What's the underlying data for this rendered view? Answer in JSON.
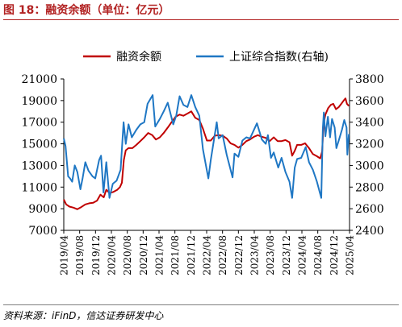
{
  "figure": {
    "title": "图 18：融资余额（单位：亿元）",
    "source": "资料来源：iFinD，信达证券研发中心"
  },
  "chart_data": {
    "type": "line",
    "x_tick_labels": [
      "2019/04",
      "2019/08",
      "2019/12",
      "2020/04",
      "2020/08",
      "2020/12",
      "2021/04",
      "2021/08",
      "2021/12",
      "2022/04",
      "2022/08",
      "2022/12",
      "2023/04",
      "2023/08",
      "2023/12",
      "2024/04",
      "2024/08",
      "2024/12",
      "2025/04"
    ],
    "y_left": {
      "ylim": [
        7000,
        21000
      ],
      "ticks": [
        7000,
        9000,
        11000,
        13000,
        15000,
        17000,
        19000,
        21000
      ]
    },
    "y_right": {
      "ylim": [
        2400,
        3800
      ],
      "ticks": [
        2400,
        2600,
        2800,
        3000,
        3200,
        3400,
        3600,
        3800
      ]
    },
    "legend_position": "top",
    "series": [
      {
        "name": "融资余额",
        "axis": "left",
        "color": "#c00000",
        "points": [
          [
            "2019-04-01",
            9850
          ],
          [
            "2019-04-20",
            9400
          ],
          [
            "2019-05-15",
            9200
          ],
          [
            "2019-06-15",
            9100
          ],
          [
            "2019-07-15",
            8950
          ],
          [
            "2019-08-15",
            9150
          ],
          [
            "2019-09-15",
            9400
          ],
          [
            "2019-10-15",
            9500
          ],
          [
            "2019-11-15",
            9550
          ],
          [
            "2019-12-15",
            9750
          ],
          [
            "2020-01-10",
            10300
          ],
          [
            "2020-02-05",
            10050
          ],
          [
            "2020-02-25",
            10750
          ],
          [
            "2020-03-20",
            10450
          ],
          [
            "2020-04-20",
            10550
          ],
          [
            "2020-05-20",
            10750
          ],
          [
            "2020-06-10",
            11000
          ],
          [
            "2020-06-25",
            11400
          ],
          [
            "2020-07-10",
            13500
          ],
          [
            "2020-07-25",
            14400
          ],
          [
            "2020-08-15",
            14600
          ],
          [
            "2020-09-15",
            14600
          ],
          [
            "2020-10-15",
            14900
          ],
          [
            "2020-11-15",
            15250
          ],
          [
            "2020-12-15",
            15600
          ],
          [
            "2021-01-15",
            16000
          ],
          [
            "2021-02-15",
            15800
          ],
          [
            "2021-03-15",
            15400
          ],
          [
            "2021-04-15",
            15600
          ],
          [
            "2021-05-15",
            16000
          ],
          [
            "2021-06-15",
            16500
          ],
          [
            "2021-07-15",
            17000
          ],
          [
            "2021-08-15",
            17500
          ],
          [
            "2021-09-15",
            17700
          ],
          [
            "2021-10-15",
            17600
          ],
          [
            "2021-11-15",
            17800
          ],
          [
            "2021-12-15",
            18000
          ],
          [
            "2022-01-15",
            17400
          ],
          [
            "2022-02-15",
            17200
          ],
          [
            "2022-03-15",
            16400
          ],
          [
            "2022-04-15",
            15300
          ],
          [
            "2022-05-15",
            15300
          ],
          [
            "2022-06-15",
            15750
          ],
          [
            "2022-07-15",
            15800
          ],
          [
            "2022-08-15",
            15750
          ],
          [
            "2022-09-15",
            15500
          ],
          [
            "2022-10-15",
            15050
          ],
          [
            "2022-11-15",
            14900
          ],
          [
            "2022-12-15",
            14650
          ],
          [
            "2023-01-15",
            14900
          ],
          [
            "2023-02-15",
            15250
          ],
          [
            "2023-03-15",
            15400
          ],
          [
            "2023-04-15",
            15650
          ],
          [
            "2023-05-15",
            15800
          ],
          [
            "2023-06-15",
            15650
          ],
          [
            "2023-07-15",
            15550
          ],
          [
            "2023-08-15",
            15250
          ],
          [
            "2023-09-15",
            15600
          ],
          [
            "2023-10-15",
            15250
          ],
          [
            "2023-11-15",
            15250
          ],
          [
            "2023-12-15",
            15350
          ],
          [
            "2024-01-15",
            15150
          ],
          [
            "2024-02-05",
            13900
          ],
          [
            "2024-02-25",
            14350
          ],
          [
            "2024-03-15",
            14900
          ],
          [
            "2024-04-15",
            14900
          ],
          [
            "2024-05-15",
            15050
          ],
          [
            "2024-06-15",
            14600
          ],
          [
            "2024-07-15",
            14050
          ],
          [
            "2024-08-15",
            13850
          ],
          [
            "2024-09-10",
            13650
          ],
          [
            "2024-09-25",
            14300
          ],
          [
            "2024-10-05",
            16800
          ],
          [
            "2024-10-20",
            17700
          ],
          [
            "2024-11-10",
            18300
          ],
          [
            "2024-12-01",
            18600
          ],
          [
            "2024-12-20",
            18700
          ],
          [
            "2025-01-10",
            18200
          ],
          [
            "2025-02-01",
            18400
          ],
          [
            "2025-02-20",
            18700
          ],
          [
            "2025-03-10",
            19000
          ],
          [
            "2025-03-25",
            19200
          ],
          [
            "2025-04-05",
            18700
          ],
          [
            "2025-04-20",
            18500
          ]
        ]
      },
      {
        "name": "上证综合指数(右轴)",
        "axis": "right",
        "color": "#1f77c4",
        "points": [
          [
            "2019-04-01",
            3250
          ],
          [
            "2019-04-15",
            3180
          ],
          [
            "2019-05-05",
            2900
          ],
          [
            "2019-05-20",
            2880
          ],
          [
            "2019-06-05",
            2850
          ],
          [
            "2019-06-25",
            3000
          ],
          [
            "2019-07-15",
            2940
          ],
          [
            "2019-08-08",
            2780
          ],
          [
            "2019-08-25",
            2880
          ],
          [
            "2019-09-15",
            3030
          ],
          [
            "2019-10-10",
            2950
          ],
          [
            "2019-11-10",
            2900
          ],
          [
            "2019-12-01",
            2880
          ],
          [
            "2019-12-31",
            3050
          ],
          [
            "2020-01-15",
            3090
          ],
          [
            "2020-02-03",
            2750
          ],
          [
            "2020-02-25",
            3030
          ],
          [
            "2020-03-20",
            2700
          ],
          [
            "2020-04-15",
            2830
          ],
          [
            "2020-05-15",
            2860
          ],
          [
            "2020-06-15",
            2960
          ],
          [
            "2020-07-08",
            3400
          ],
          [
            "2020-07-25",
            3200
          ],
          [
            "2020-08-15",
            3380
          ],
          [
            "2020-09-10",
            3260
          ],
          [
            "2020-10-15",
            3330
          ],
          [
            "2020-11-15",
            3380
          ],
          [
            "2020-12-15",
            3400
          ],
          [
            "2021-01-10",
            3570
          ],
          [
            "2021-02-18",
            3650
          ],
          [
            "2021-03-10",
            3360
          ],
          [
            "2021-04-15",
            3430
          ],
          [
            "2021-05-15",
            3500
          ],
          [
            "2021-06-15",
            3580
          ],
          [
            "2021-07-28",
            3380
          ],
          [
            "2021-08-20",
            3460
          ],
          [
            "2021-09-15",
            3640
          ],
          [
            "2021-10-15",
            3560
          ],
          [
            "2021-11-15",
            3540
          ],
          [
            "2021-12-15",
            3650
          ],
          [
            "2022-01-15",
            3540
          ],
          [
            "2022-02-15",
            3460
          ],
          [
            "2022-03-15",
            3150
          ],
          [
            "2022-04-26",
            2880
          ],
          [
            "2022-05-15",
            3050
          ],
          [
            "2022-06-30",
            3400
          ],
          [
            "2022-07-15",
            3250
          ],
          [
            "2022-08-15",
            3280
          ],
          [
            "2022-09-15",
            3100
          ],
          [
            "2022-10-31",
            2890
          ],
          [
            "2022-11-15",
            3110
          ],
          [
            "2022-12-15",
            3080
          ],
          [
            "2023-01-15",
            3230
          ],
          [
            "2023-02-15",
            3260
          ],
          [
            "2023-03-15",
            3250
          ],
          [
            "2023-05-08",
            3390
          ],
          [
            "2023-06-15",
            3240
          ],
          [
            "2023-07-15",
            3200
          ],
          [
            "2023-08-01",
            3280
          ],
          [
            "2023-08-25",
            3070
          ],
          [
            "2023-09-15",
            3120
          ],
          [
            "2023-10-20",
            2980
          ],
          [
            "2023-11-15",
            3070
          ],
          [
            "2023-12-15",
            2940
          ],
          [
            "2024-01-15",
            2850
          ],
          [
            "2024-02-05",
            2700
          ],
          [
            "2024-02-25",
            2980
          ],
          [
            "2024-03-15",
            3060
          ],
          [
            "2024-04-15",
            3070
          ],
          [
            "2024-05-20",
            3170
          ],
          [
            "2024-06-15",
            3030
          ],
          [
            "2024-07-15",
            2960
          ],
          [
            "2024-08-15",
            2850
          ],
          [
            "2024-09-18",
            2700
          ],
          [
            "2024-09-30",
            3340
          ],
          [
            "2024-10-08",
            3490
          ],
          [
            "2024-10-20",
            3270
          ],
          [
            "2024-11-08",
            3450
          ],
          [
            "2024-11-25",
            3260
          ],
          [
            "2024-12-10",
            3430
          ],
          [
            "2024-12-31",
            3350
          ],
          [
            "2025-01-13",
            3160
          ],
          [
            "2025-02-05",
            3250
          ],
          [
            "2025-02-25",
            3330
          ],
          [
            "2025-03-15",
            3420
          ],
          [
            "2025-04-02",
            3350
          ],
          [
            "2025-04-08",
            3100
          ],
          [
            "2025-04-20",
            3290
          ]
        ]
      }
    ]
  }
}
